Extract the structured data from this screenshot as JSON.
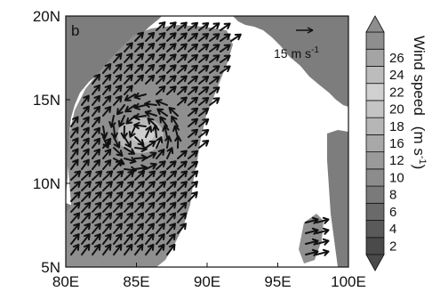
{
  "chart_data": {
    "type": "map-vector-field",
    "panel_label": "b",
    "x_axis": {
      "tick_labels": [
        "80E",
        "85E",
        "90E",
        "95E",
        "100E"
      ],
      "ticks": [
        80,
        85,
        90,
        95,
        100
      ],
      "range": [
        80,
        100
      ]
    },
    "y_axis": {
      "tick_labels": [
        "5N",
        "10N",
        "15N",
        "20N"
      ],
      "ticks": [
        5,
        10,
        15,
        20
      ],
      "range": [
        5,
        20
      ]
    },
    "reference_vector": {
      "magnitude": 15,
      "label": "15 m s",
      "superscript": "-1"
    },
    "colorbar": {
      "title": "Wind speed",
      "units": "(m s",
      "units_sup": "-1",
      "units_close": ")",
      "levels": [
        2,
        4,
        6,
        8,
        10,
        12,
        16,
        18,
        20,
        22,
        24,
        26
      ],
      "tick_labels": [
        "2",
        "4",
        "6",
        "8",
        "10",
        "12",
        "16",
        "18",
        "20",
        "22",
        "24",
        "26"
      ],
      "colors": [
        "#4a4a4a",
        "#5a5a5a",
        "#6a6a6a",
        "#7a7a7a",
        "#8c8c8c",
        "#9a9a9a",
        "#a8a8a8",
        "#b6b6b6",
        "#c4c4c4",
        "#d0d0d0",
        "#bcbcbc",
        "#a4a4a4",
        "#8e8e8e"
      ],
      "extend": "both"
    },
    "colors": {
      "land": "#7d7d7d",
      "ocean_no_data": "#ffffff",
      "wind_region": "#8f8f8f",
      "strong_wind": "#b8b8b8",
      "arrows": "#111111"
    }
  }
}
